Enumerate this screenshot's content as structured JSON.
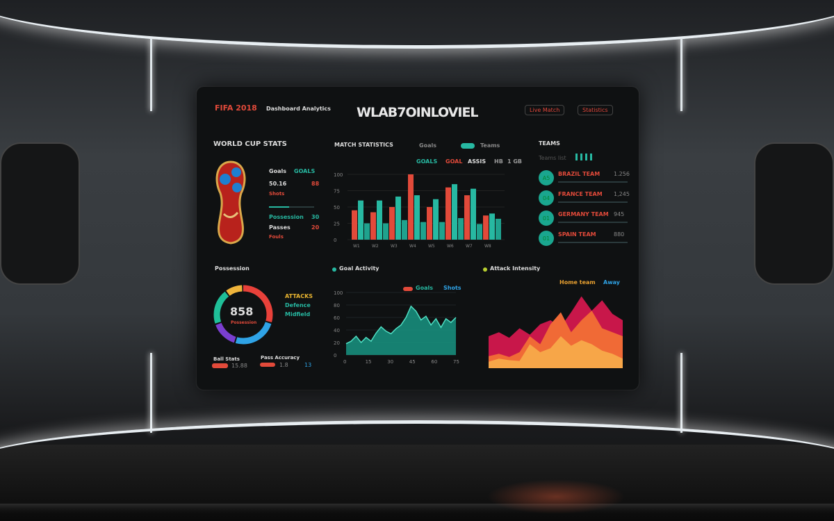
{
  "header": {
    "brand": "FIFA 2018",
    "brand_sub": "Dashboard Analytics",
    "title": "WLAB7OINLOVIEL",
    "btn1": "Live Match",
    "btn2": "Statistics"
  },
  "left_panel": {
    "title": "WORLD CUP STATS",
    "rows": [
      {
        "label": "Goals",
        "value": "GOALS"
      },
      {
        "label": "50.16",
        "value": "88"
      },
      {
        "label": "Shots",
        "value": "Shots"
      },
      {
        "label": "Possession",
        "value": "30"
      },
      {
        "label": "Passes",
        "value": "20"
      },
      {
        "label": "Fouls",
        "value": "Fouls"
      }
    ],
    "trophy_icon": "world-cup-trophy-icon"
  },
  "bar_chart": {
    "title": "MATCH STATISTICS",
    "legend": [
      "Goals",
      "Teams"
    ],
    "filters": [
      "GOALS",
      "GOAL",
      "ASSIS",
      "HB",
      "1 GB"
    ]
  },
  "right_panel": {
    "title": "TEAMS",
    "subtitle": "Teams list",
    "items": [
      {
        "badge": "A5",
        "name": "BRAZIL TEAM",
        "value": "1.256"
      },
      {
        "badge": "04",
        "name": "FRANCE TEAM",
        "value": "1,245"
      },
      {
        "badge": "01",
        "name": "GERMANY TEAM",
        "value": "945"
      },
      {
        "badge": "01",
        "name": "SPAIN TEAM",
        "value": "880"
      }
    ]
  },
  "donut": {
    "title": "Possession",
    "center": "858",
    "center_sub": "Possession",
    "legend": [
      "ATTACKS",
      "Defence",
      "Midfield"
    ],
    "foot": [
      {
        "label": "Ball Stats",
        "val": "15.88"
      },
      {
        "label": "Pass Accuracy",
        "val": "1.8"
      },
      {
        "label": "",
        "val": "13"
      }
    ],
    "segments": [
      {
        "value": 30,
        "color": "#e8413a"
      },
      {
        "value": 25,
        "color": "#2fa3e6"
      },
      {
        "value": 15,
        "color": "#7a3fd0"
      },
      {
        "value": 20,
        "color": "#1fbf98"
      },
      {
        "value": 10,
        "color": "#efb43b"
      }
    ]
  },
  "colors": {
    "red": "#e24a3a",
    "teal": "#27b9a2",
    "bg": "#0f1112"
  },
  "chart_data": [
    {
      "type": "bar",
      "title": "MATCH STATISTICS",
      "ylim": [
        0,
        100
      ],
      "yticks": [
        "0",
        "25",
        "50",
        "75",
        "100"
      ],
      "categories": [
        "W1",
        "W2",
        "W3",
        "W4",
        "W5",
        "W6",
        "W7",
        "W8"
      ],
      "series": [
        {
          "color": "#e24a3a",
          "values": [
            45,
            42,
            50,
            100,
            50,
            80,
            68,
            37
          ]
        },
        {
          "color": "#27b9a2",
          "values": [
            60,
            60,
            66,
            68,
            62,
            85,
            78,
            40
          ]
        },
        {
          "color": "#1fa28e",
          "values": [
            25,
            25,
            30,
            27,
            27,
            33,
            24,
            32
          ]
        }
      ]
    },
    {
      "type": "area",
      "title": "Goal Activity",
      "ylim": [
        0,
        100
      ],
      "yticks": [
        "0",
        "20",
        "40",
        "60",
        "80",
        "100"
      ],
      "xticks": [
        "0",
        "15",
        "30",
        "45",
        "60",
        "75"
      ],
      "legend": [
        "Goals",
        "Shots"
      ],
      "values": [
        18,
        22,
        30,
        20,
        28,
        22,
        35,
        45,
        38,
        34,
        42,
        48,
        60,
        78,
        70,
        56,
        62,
        48,
        58,
        44,
        58,
        52,
        60
      ]
    },
    {
      "type": "area",
      "title": "Attack Intensity",
      "legend": [
        "Home team",
        "Away"
      ],
      "series": [
        {
          "color": "#c8174a",
          "values": [
            40,
            45,
            38,
            50,
            42,
            55,
            60,
            52,
            70,
            90,
            72,
            85,
            68,
            60
          ]
        },
        {
          "color": "#f06a36",
          "values": [
            15,
            18,
            14,
            20,
            40,
            30,
            55,
            70,
            45,
            60,
            72,
            50,
            45,
            40
          ]
        },
        {
          "color": "#f7a648",
          "values": [
            8,
            12,
            10,
            9,
            30,
            20,
            25,
            40,
            28,
            35,
            30,
            22,
            18,
            12
          ]
        }
      ]
    }
  ]
}
